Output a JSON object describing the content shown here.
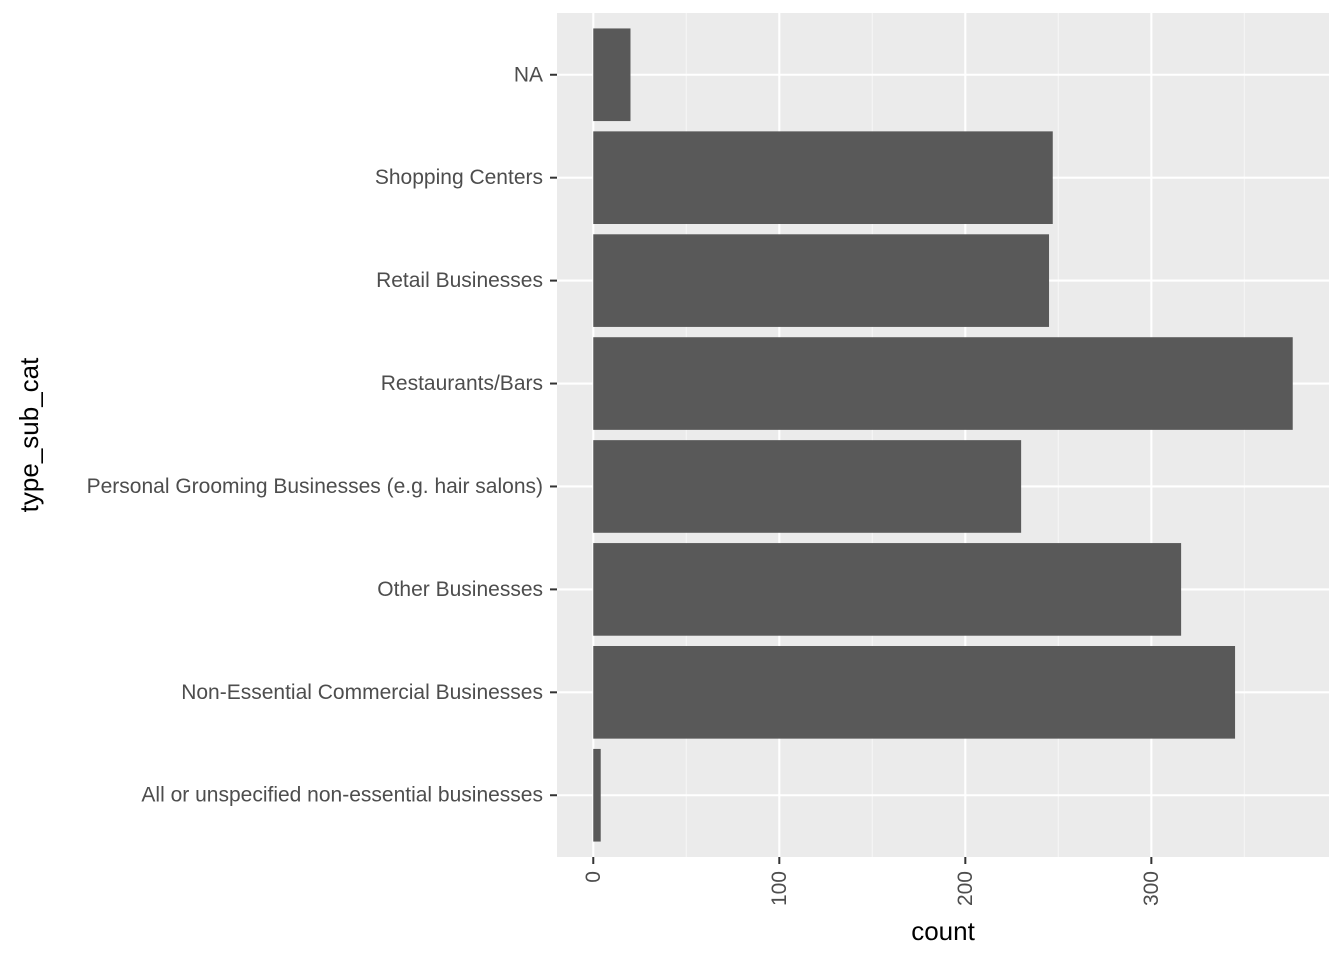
{
  "chart_data": {
    "type": "bar",
    "orientation": "horizontal",
    "categories": [
      "All or unspecified non-essential businesses",
      "Non-Essential Commercial Businesses",
      "Other Businesses",
      "Personal Grooming Businesses (e.g. hair salons)",
      "Restaurants/Bars",
      "Retail Businesses",
      "Shopping Centers",
      "NA"
    ],
    "values": [
      4,
      345,
      316,
      230,
      376,
      245,
      247,
      20
    ],
    "title": "",
    "xlabel": "count",
    "ylabel": "type_sub_cat",
    "xlim": [
      -19.5,
      395.5
    ],
    "xticks": [
      0,
      100,
      200,
      300
    ],
    "grid": true,
    "legend": "none",
    "colors": {
      "bar": "#595959",
      "panel": "#ebebeb",
      "grid_major": "#ffffff",
      "grid_minor": "#f5f5f5",
      "tick": "#333333",
      "tick_label": "#4d4d4d",
      "axis_title": "#000000"
    }
  }
}
